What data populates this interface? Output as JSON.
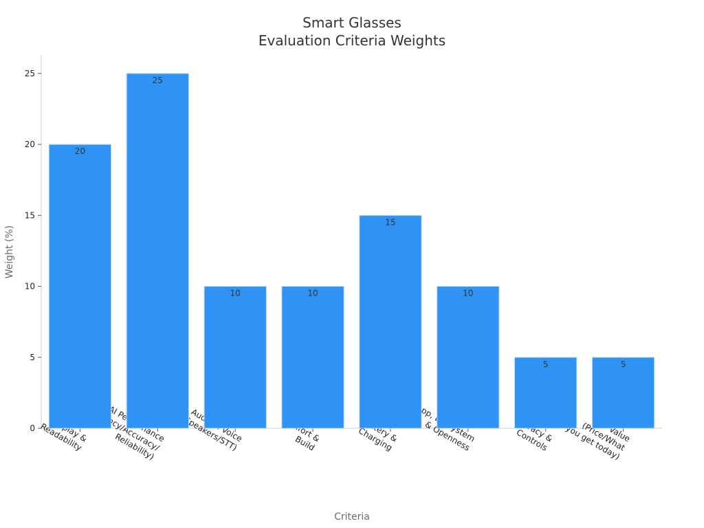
{
  "chart_data": {
    "type": "bar",
    "title_lines": [
      "Smart Glasses",
      "Evaluation Criteria Weights"
    ],
    "xlabel": "Criteria",
    "ylabel": "Weight (%)",
    "ylim": [
      0,
      26.3
    ],
    "yticks": [
      0,
      5,
      10,
      15,
      20,
      25
    ],
    "categories": [
      [
        "Display &",
        "Readability"
      ],
      [
        "AI Performance",
        "(Latency/Accuracy/",
        "Reliability)"
      ],
      [
        "Audio & Voice",
        "(Mics/Speakers/STT)"
      ],
      [
        "Comfort &",
        "Build"
      ],
      [
        "Battery &",
        "Charging"
      ],
      [
        "App, Ecosystem",
        "& Openness"
      ],
      [
        "Privacy &",
        "Controls"
      ],
      [
        "Value",
        "(Price/What",
        "you get today)"
      ]
    ],
    "values": [
      20,
      25,
      10,
      10,
      15,
      10,
      5,
      5
    ],
    "colors": {
      "bar": "#2e93f5"
    },
    "grid": false,
    "legend": "none"
  }
}
